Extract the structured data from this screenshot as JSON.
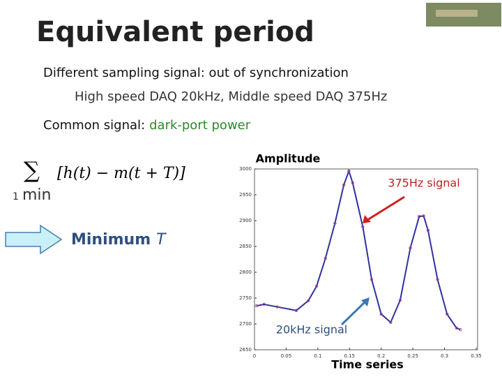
{
  "slide": {
    "title": "Equivalent period",
    "bullets": [
      "Different sampling signal: out of synchronization",
      "High speed DAQ 20kHz, Middle speed DAQ 375Hz"
    ],
    "common_label": "Common signal:",
    "common_value": "dark-port power",
    "formula": {
      "sum": "∑",
      "body": "[h(t) − m(t + T)]",
      "sub_index": "1",
      "sub_min": "min"
    },
    "arrow_label": "Minimum",
    "arrow_symbol": "T"
  },
  "chart_data": {
    "type": "line",
    "y_label": "Amplitude",
    "x_label": "Time series",
    "annotations": [
      "375Hz signal",
      "20kHz signal"
    ],
    "x": [
      0.003,
      0.015,
      0.036,
      0.066,
      0.085,
      0.098,
      0.112,
      0.127,
      0.141,
      0.149,
      0.155,
      0.171,
      0.185,
      0.2,
      0.215,
      0.23,
      0.246,
      0.26,
      0.267,
      0.274,
      0.289,
      0.304,
      0.319,
      0.325
    ],
    "series": [
      {
        "name": "375Hz signal",
        "color": "#3030a0",
        "values": [
          2735,
          2738,
          2733,
          2726,
          2745,
          2773,
          2827,
          2895,
          2969,
          2996,
          2973,
          2888,
          2786,
          2719,
          2703,
          2746,
          2847,
          2908,
          2909,
          2881,
          2786,
          2719,
          2692,
          2689
        ]
      },
      {
        "name": "20kHz signal",
        "color": "#c04080",
        "values": [
          2735,
          2738,
          2733,
          2726,
          2745,
          2773,
          2827,
          2895,
          2969,
          2996,
          2973,
          2888,
          2786,
          2719,
          2703,
          2746,
          2847,
          2908,
          2909,
          2881,
          2786,
          2719,
          2692,
          2689
        ]
      }
    ],
    "xlim": [
      0,
      0.35
    ],
    "ylim": [
      2650,
      3000
    ],
    "xticks": [
      0,
      0.05,
      0.1,
      0.15,
      0.2,
      0.25,
      0.3,
      0.35
    ],
    "yticks": [
      2650,
      2700,
      2750,
      2800,
      2850,
      2900,
      2950,
      3000
    ]
  }
}
